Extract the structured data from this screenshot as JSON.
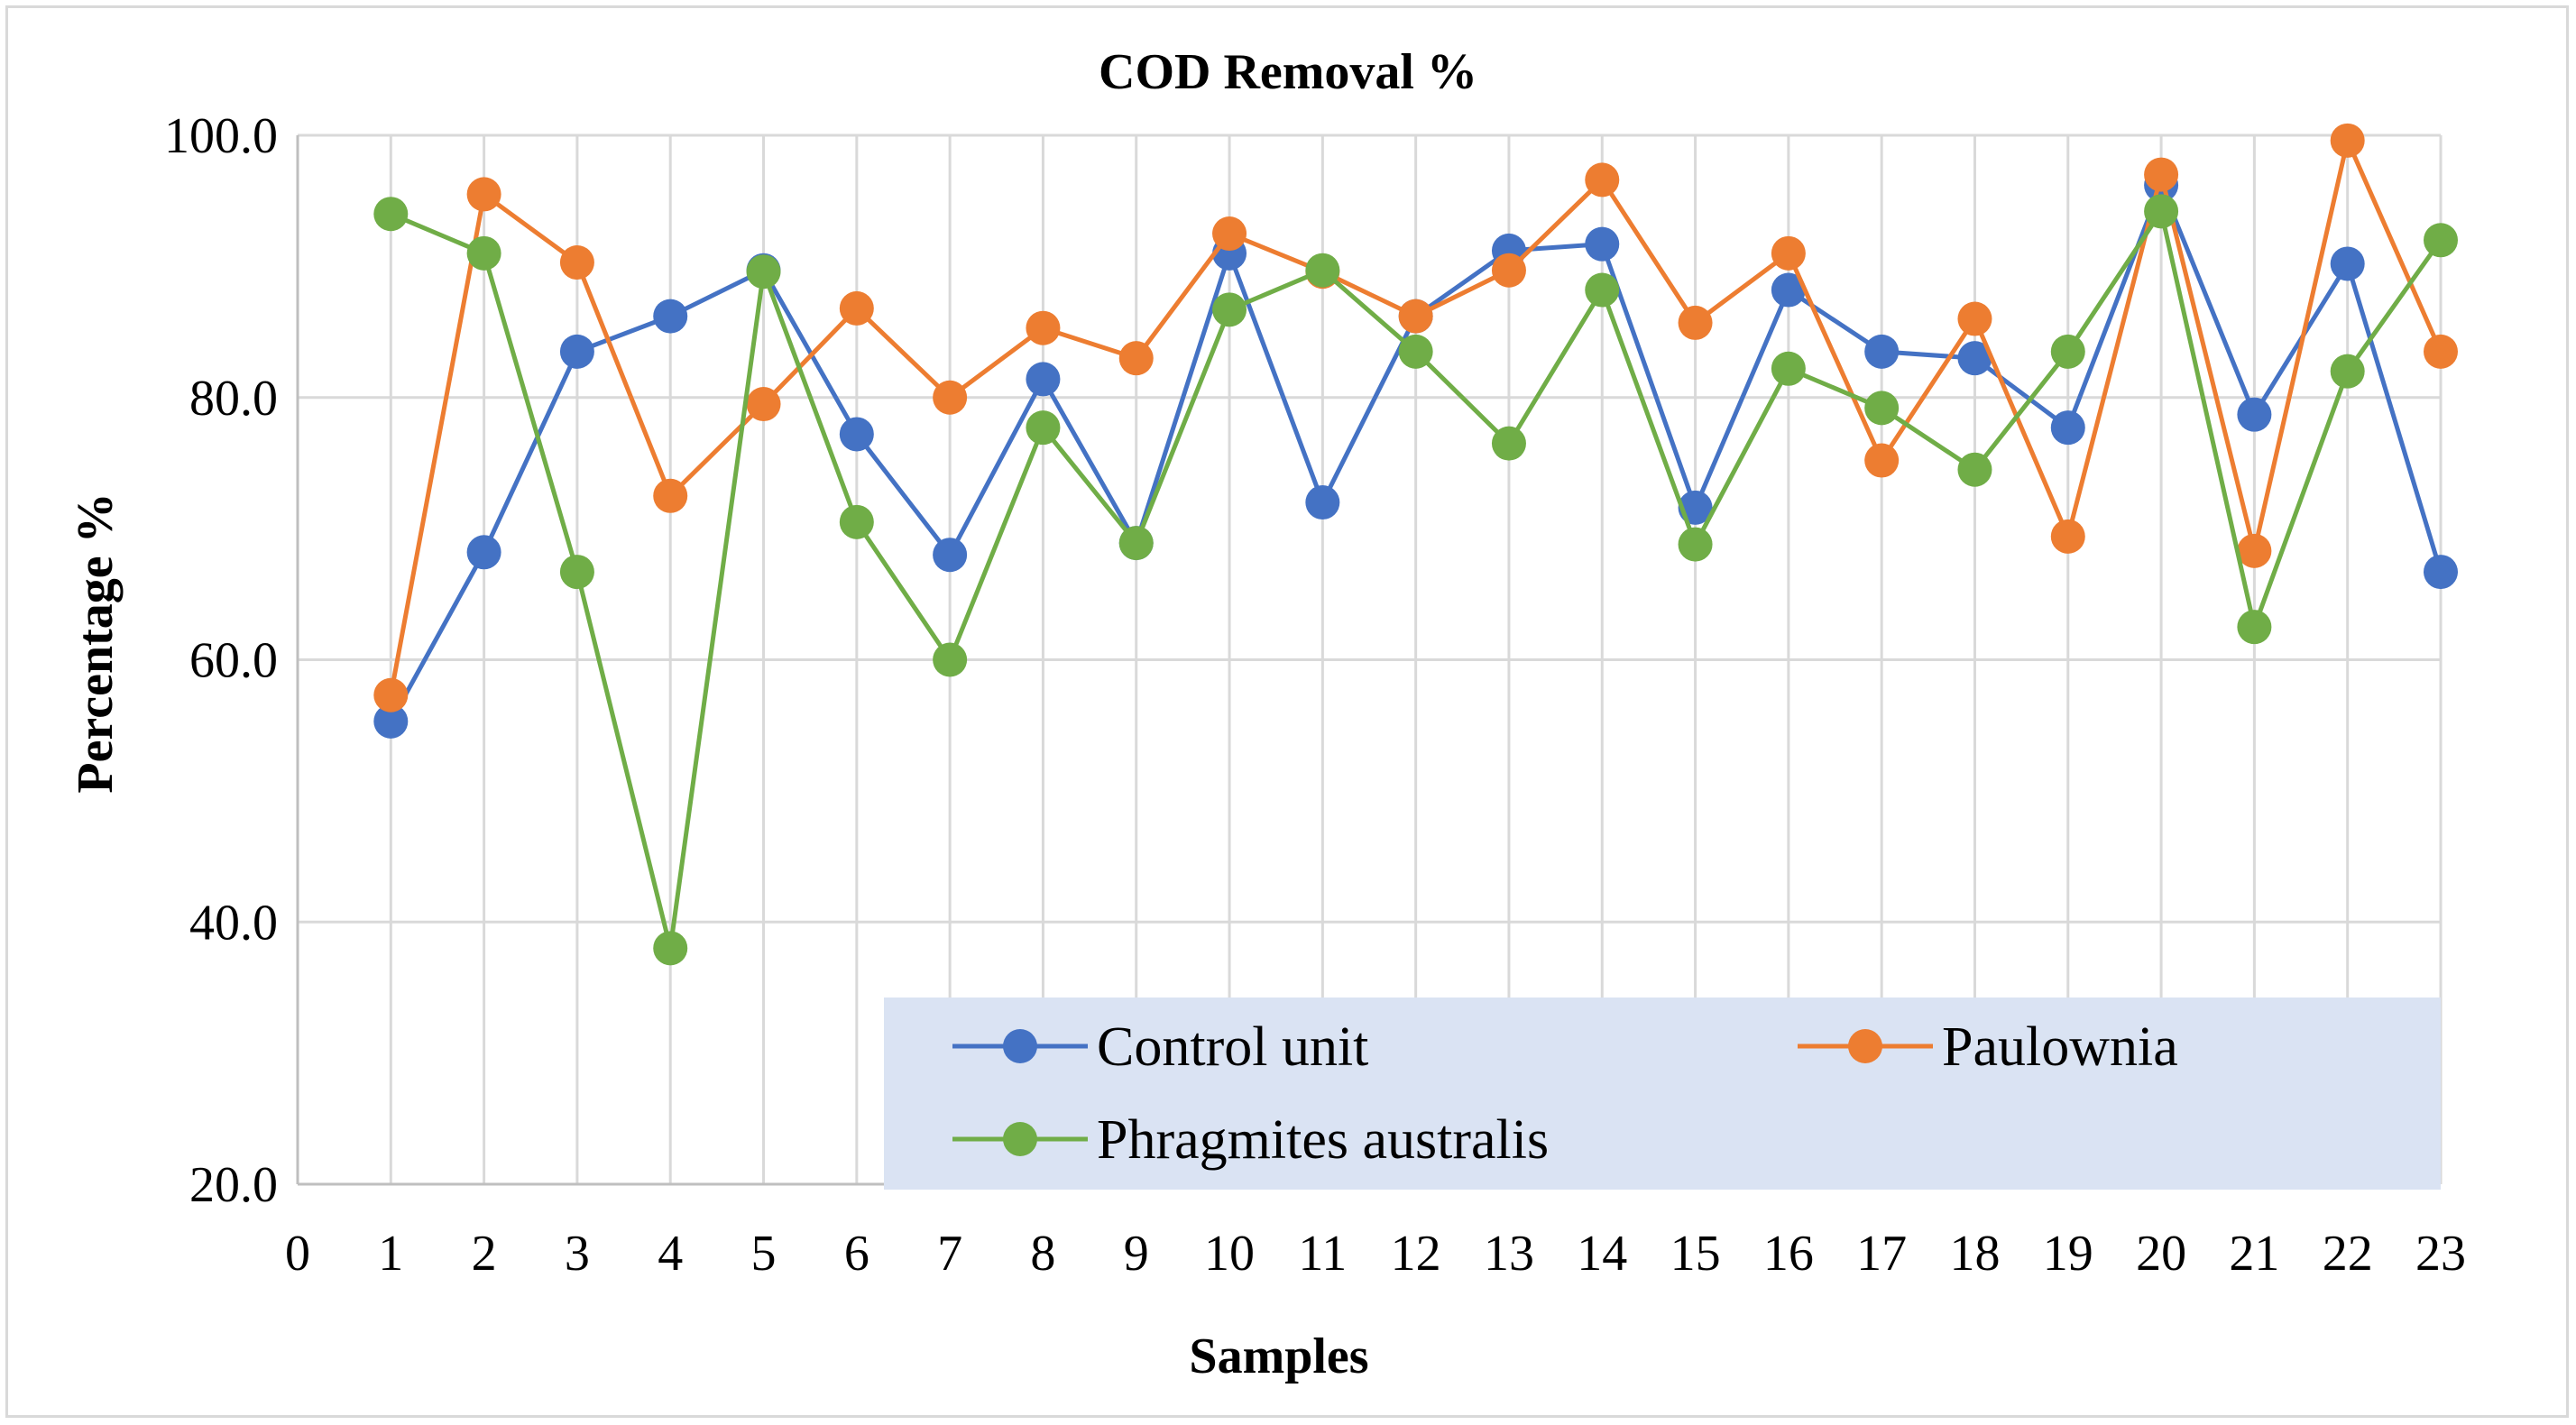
{
  "chart_data": {
    "type": "line",
    "title": "COD Removal %",
    "xlabel": "Samples",
    "ylabel": "Percentage %",
    "xlim": [
      0,
      23
    ],
    "ylim": [
      20,
      100
    ],
    "x_ticks": [
      0,
      1,
      2,
      3,
      4,
      5,
      6,
      7,
      8,
      9,
      10,
      11,
      12,
      13,
      14,
      15,
      16,
      17,
      18,
      19,
      20,
      21,
      22,
      23
    ],
    "y_ticks": [
      "20.0",
      "40.0",
      "60.0",
      "80.0",
      "100.0"
    ],
    "y_tick_values": [
      20,
      40,
      60,
      80,
      100
    ],
    "grid": true,
    "legend_position": "bottom-right",
    "x": [
      1,
      2,
      3,
      4,
      5,
      6,
      7,
      8,
      9,
      10,
      11,
      12,
      13,
      14,
      15,
      16,
      17,
      18,
      19,
      20,
      21,
      22,
      23
    ],
    "series": [
      {
        "name": "Control unit",
        "color": "#4472c4",
        "values": [
          55.3,
          68.2,
          83.5,
          86.2,
          89.7,
          77.2,
          68.0,
          81.4,
          68.9,
          91.0,
          72.0,
          86.2,
          91.2,
          91.7,
          71.6,
          88.2,
          83.5,
          83.0,
          77.7,
          96.2,
          78.7,
          90.2,
          66.7
        ]
      },
      {
        "name": "Paulownia",
        "color": "#ed7d31",
        "values": [
          57.3,
          95.5,
          90.3,
          72.5,
          79.5,
          86.8,
          80.0,
          85.3,
          83.0,
          92.5,
          89.6,
          86.2,
          89.7,
          96.6,
          85.7,
          91.0,
          75.2,
          86.0,
          69.4,
          97.0,
          68.3,
          99.6,
          83.5
        ]
      },
      {
        "name": "Phragmites australis",
        "color": "#70ad47",
        "values": [
          94.0,
          91.0,
          66.7,
          38.0,
          89.6,
          70.5,
          60.0,
          77.7,
          68.9,
          86.7,
          89.7,
          83.5,
          76.5,
          88.2,
          68.8,
          82.2,
          79.2,
          74.5,
          83.5,
          94.2,
          62.5,
          82.0,
          92.0
        ]
      }
    ]
  }
}
